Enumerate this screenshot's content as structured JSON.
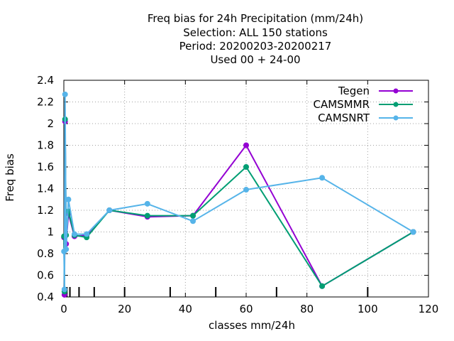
{
  "chart_data": {
    "type": "line",
    "title": [
      "Freq bias  for 24h Precipitation (mm/24h)",
      "Selection: ALL    150 stations",
      "Period: 20200203-20200217",
      "Used  00 + 24-00"
    ],
    "xlabel": "classes mm/24h",
    "ylabel": "Freq bias",
    "xlim": [
      0,
      120
    ],
    "ylim": [
      0.4,
      2.4
    ],
    "xticks": [
      0,
      20,
      40,
      60,
      80,
      100,
      120
    ],
    "yticks": [
      0.4,
      0.6,
      0.8,
      1,
      1.2,
      1.4,
      1.6,
      1.8,
      2,
      2.2,
      2.4
    ],
    "grid": true,
    "legend_position": "top-right",
    "class_marks": [
      0.1,
      0.25,
      0.5,
      1,
      2,
      5,
      10,
      20,
      35,
      50,
      70,
      100
    ],
    "series": [
      {
        "name": "Tegen",
        "color": "#9400d3",
        "x": [
          0.05,
          0.2,
          0.4,
          0.75,
          1.5,
          3.5,
          7.5,
          15,
          27.5,
          42.5,
          60,
          85,
          115
        ],
        "y": [
          0.95,
          0.42,
          2.02,
          0.89,
          1.17,
          0.96,
          0.97,
          1.2,
          1.14,
          1.15,
          1.8,
          0.5,
          1.0
        ]
      },
      {
        "name": "CAMSMMR",
        "color": "#009e73",
        "x": [
          0.05,
          0.2,
          0.4,
          0.75,
          1.5,
          3.5,
          7.5,
          15,
          27.5,
          42.5,
          60,
          85,
          115
        ],
        "y": [
          0.96,
          0.45,
          2.04,
          0.97,
          1.19,
          0.97,
          0.95,
          1.2,
          1.15,
          1.15,
          1.6,
          0.5,
          1.0
        ]
      },
      {
        "name": "CAMSNRT",
        "color": "#56b4e9",
        "x": [
          0.05,
          0.2,
          0.4,
          0.75,
          1.5,
          3.5,
          7.5,
          15,
          27.5,
          42.5,
          60,
          85,
          115
        ],
        "y": [
          0.82,
          0.47,
          2.27,
          0.84,
          1.3,
          0.98,
          0.98,
          1.2,
          1.26,
          1.1,
          1.39,
          1.5,
          1.0
        ]
      }
    ]
  }
}
